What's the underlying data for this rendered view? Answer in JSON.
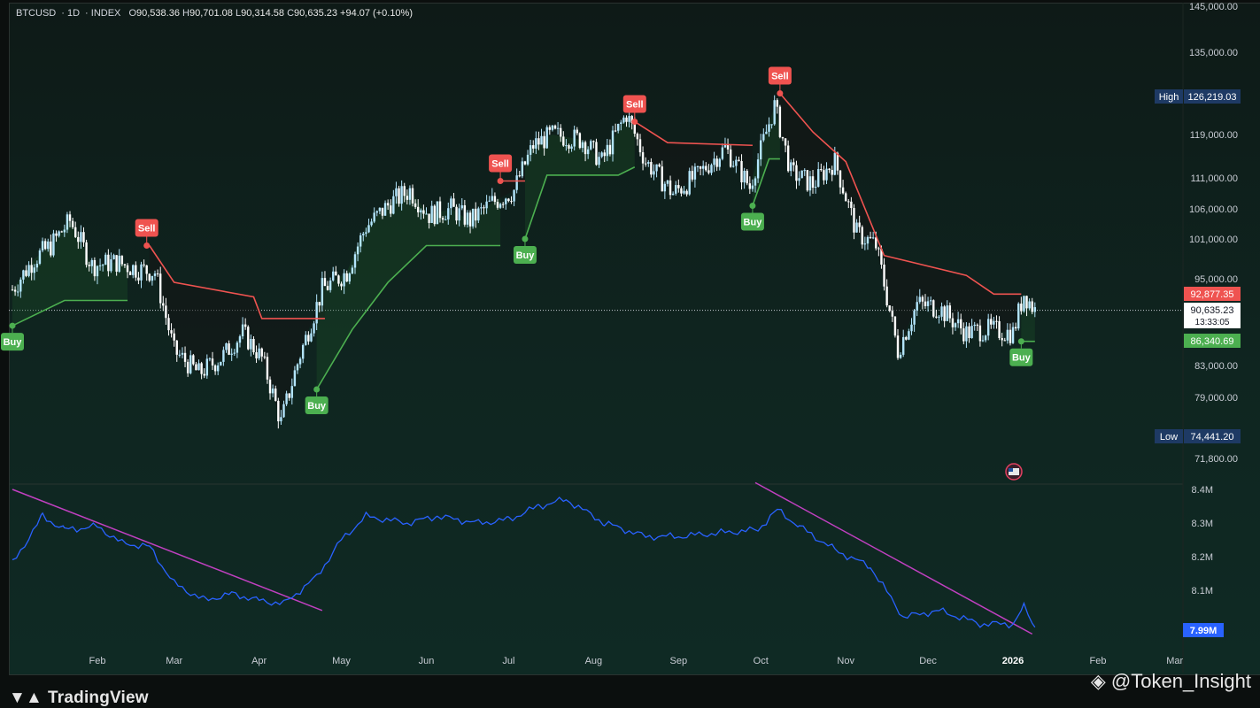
{
  "header": {
    "symbol": "BTCUSD",
    "interval": "1D",
    "exchange": "INDEX",
    "open_label": "O",
    "open": "90,538.36",
    "high_label": "H",
    "high": "90,701.08",
    "low_label": "L",
    "low": "90,314.58",
    "close_label": "C",
    "close": "90,635.23",
    "change": "+94.07 (+0.10%)"
  },
  "tags": {
    "high_label": "High",
    "high_value": "126,219.03",
    "low_label": "Low",
    "low_value": "74,441.20",
    "stop_value": "92,877.35",
    "last_price": "90,635.23",
    "countdown": "13:33:05",
    "support_value": "86,340.69",
    "indicator_value": "7.99M"
  },
  "branding": {
    "logo_text": "TradingView",
    "watermark": "@Token_Insight"
  },
  "colors": {
    "up_candle": "#b3e5fc",
    "down_candle": "#ffffff",
    "sell": "#ef5350",
    "buy": "#4caf50",
    "indicator": "#2962ff",
    "trendline": "#c040c0",
    "high_tag": "#1e3a64",
    "last_price_bg": "#ffffff"
  },
  "chart_data": {
    "type": "candlestick",
    "title": "",
    "x_ticks": [
      "Feb",
      "Mar",
      "Apr",
      "May",
      "Jun",
      "Jul",
      "Aug",
      "Sep",
      "Oct",
      "Nov",
      "Dec",
      "2026",
      "Feb",
      "Mar"
    ],
    "y_ticks": [
      "145,000.00",
      "135,000.00",
      "119,000.00",
      "111,000.00",
      "106,000.00",
      "101,000.00",
      "95,000.00",
      "83,000.00",
      "79,000.00",
      "71,800.00"
    ],
    "price_trace": [
      {
        "date": "2025-01-01",
        "close": 93500
      },
      {
        "date": "2025-01-09",
        "close": 98000
      },
      {
        "date": "2025-01-15",
        "close": 100000
      },
      {
        "date": "2025-01-22",
        "close": 104000
      },
      {
        "date": "2025-01-30",
        "close": 97000
      },
      {
        "date": "2025-02-08",
        "close": 97500
      },
      {
        "date": "2025-02-15",
        "close": 96500
      },
      {
        "date": "2025-02-22",
        "close": 96000
      },
      {
        "date": "2025-03-01",
        "close": 85000
      },
      {
        "date": "2025-03-10",
        "close": 82000
      },
      {
        "date": "2025-03-18",
        "close": 84000
      },
      {
        "date": "2025-03-26",
        "close": 87500
      },
      {
        "date": "2025-04-02",
        "close": 84000
      },
      {
        "date": "2025-04-09",
        "close": 76000
      },
      {
        "date": "2025-04-16",
        "close": 84500
      },
      {
        "date": "2025-04-24",
        "close": 93500
      },
      {
        "date": "2025-05-03",
        "close": 96000
      },
      {
        "date": "2025-05-10",
        "close": 103000
      },
      {
        "date": "2025-05-19",
        "close": 107000
      },
      {
        "date": "2025-05-26",
        "close": 109000
      },
      {
        "date": "2025-06-02",
        "close": 105000
      },
      {
        "date": "2025-06-10",
        "close": 106000
      },
      {
        "date": "2025-06-17",
        "close": 104000
      },
      {
        "date": "2025-06-25",
        "close": 107000
      },
      {
        "date": "2025-07-03",
        "close": 109000
      },
      {
        "date": "2025-07-10",
        "close": 117000
      },
      {
        "date": "2025-07-17",
        "close": 119000
      },
      {
        "date": "2025-07-28",
        "close": 118000
      },
      {
        "date": "2025-08-04",
        "close": 114000
      },
      {
        "date": "2025-08-13",
        "close": 123000
      },
      {
        "date": "2025-08-20",
        "close": 114000
      },
      {
        "date": "2025-08-30",
        "close": 108500
      },
      {
        "date": "2025-09-08",
        "close": 111500
      },
      {
        "date": "2025-09-18",
        "close": 116500
      },
      {
        "date": "2025-09-27",
        "close": 109500
      },
      {
        "date": "2025-10-06",
        "close": 124500
      },
      {
        "date": "2025-10-12",
        "close": 112000
      },
      {
        "date": "2025-10-20",
        "close": 110000
      },
      {
        "date": "2025-10-28",
        "close": 114000
      },
      {
        "date": "2025-11-05",
        "close": 102000
      },
      {
        "date": "2025-11-12",
        "close": 100000
      },
      {
        "date": "2025-11-20",
        "close": 85000
      },
      {
        "date": "2025-11-27",
        "close": 91500
      },
      {
        "date": "2025-12-05",
        "close": 91000
      },
      {
        "date": "2025-12-15",
        "close": 87500
      },
      {
        "date": "2025-12-22",
        "close": 88000
      },
      {
        "date": "2026-01-01",
        "close": 87500
      },
      {
        "date": "2026-01-05",
        "close": 93000
      },
      {
        "date": "2026-01-09",
        "close": 90635.23
      }
    ],
    "stop_line": [
      {
        "date": "2025-01-01",
        "value": 88500,
        "side": "buy"
      },
      {
        "date": "2025-01-20",
        "value": 92000,
        "side": "buy"
      },
      {
        "date": "2025-02-12",
        "value": 92000,
        "side": "buy"
      },
      {
        "date": "2025-02-20",
        "value": 100000,
        "side": "sell"
      },
      {
        "date": "2025-03-01",
        "value": 94500,
        "side": "sell"
      },
      {
        "date": "2025-03-30",
        "value": 92500,
        "side": "sell"
      },
      {
        "date": "2025-04-02",
        "value": 89500,
        "side": "sell"
      },
      {
        "date": "2025-04-25",
        "value": 89500,
        "side": "sell"
      },
      {
        "date": "2025-04-22",
        "value": 80000,
        "side": "buy"
      },
      {
        "date": "2025-05-05",
        "value": 88000,
        "side": "buy"
      },
      {
        "date": "2025-05-18",
        "value": 94500,
        "side": "buy"
      },
      {
        "date": "2025-06-01",
        "value": 100000,
        "side": "buy"
      },
      {
        "date": "2025-06-28",
        "value": 100000,
        "side": "buy"
      },
      {
        "date": "2025-06-28",
        "value": 110500,
        "side": "sell"
      },
      {
        "date": "2025-07-07",
        "value": 110500,
        "side": "sell"
      },
      {
        "date": "2025-07-07",
        "value": 101000,
        "side": "buy"
      },
      {
        "date": "2025-07-15",
        "value": 111500,
        "side": "buy"
      },
      {
        "date": "2025-08-10",
        "value": 111500,
        "side": "buy"
      },
      {
        "date": "2025-08-16",
        "value": 113000,
        "side": "buy"
      },
      {
        "date": "2025-08-16",
        "value": 121500,
        "side": "sell"
      },
      {
        "date": "2025-08-28",
        "value": 117500,
        "side": "sell"
      },
      {
        "date": "2025-09-28",
        "value": 117000,
        "side": "sell"
      },
      {
        "date": "2025-09-28",
        "value": 106500,
        "side": "buy"
      },
      {
        "date": "2025-10-04",
        "value": 114500,
        "side": "buy"
      },
      {
        "date": "2025-10-08",
        "value": 114500,
        "side": "buy"
      },
      {
        "date": "2025-10-08",
        "value": 127000,
        "side": "sell"
      },
      {
        "date": "2025-10-20",
        "value": 119500,
        "side": "sell"
      },
      {
        "date": "2025-11-01",
        "value": 114000,
        "side": "sell"
      },
      {
        "date": "2025-11-15",
        "value": 98500,
        "side": "sell"
      },
      {
        "date": "2025-12-15",
        "value": 95500,
        "side": "sell"
      },
      {
        "date": "2025-12-25",
        "value": 92877.35,
        "side": "sell"
      },
      {
        "date": "2026-01-04",
        "value": 92877.35,
        "side": "sell"
      },
      {
        "date": "2026-01-04",
        "value": 86340.69,
        "side": "buy"
      },
      {
        "date": "2026-01-09",
        "value": 86340.69,
        "side": "buy"
      }
    ],
    "signals": [
      {
        "type": "Buy",
        "date": "2025-01-01",
        "price": 88500
      },
      {
        "type": "Sell",
        "date": "2025-02-19",
        "price": 100000
      },
      {
        "type": "Buy",
        "date": "2025-04-22",
        "price": 80000
      },
      {
        "type": "Sell",
        "date": "2025-06-28",
        "price": 110500
      },
      {
        "type": "Buy",
        "date": "2025-07-07",
        "price": 101000
      },
      {
        "type": "Sell",
        "date": "2025-08-16",
        "price": 121500
      },
      {
        "type": "Buy",
        "date": "2025-09-28",
        "price": 106500
      },
      {
        "type": "Sell",
        "date": "2025-10-08",
        "price": 127000
      },
      {
        "type": "Buy",
        "date": "2026-01-04",
        "price": 86340.69
      }
    ],
    "indicator": {
      "y_ticks": [
        "8.4M",
        "8.3M",
        "8.2M",
        "8.1M"
      ],
      "last_value": "7.99M",
      "series": [
        {
          "date": "2025-01-01",
          "value": 8.18
        },
        {
          "date": "2025-01-12",
          "value": 8.32
        },
        {
          "date": "2025-01-20",
          "value": 8.28
        },
        {
          "date": "2025-02-01",
          "value": 8.29
        },
        {
          "date": "2025-02-10",
          "value": 8.24
        },
        {
          "date": "2025-02-20",
          "value": 8.23
        },
        {
          "date": "2025-03-01",
          "value": 8.12
        },
        {
          "date": "2025-03-12",
          "value": 8.07
        },
        {
          "date": "2025-03-22",
          "value": 8.09
        },
        {
          "date": "2025-04-01",
          "value": 8.07
        },
        {
          "date": "2025-04-10",
          "value": 8.06
        },
        {
          "date": "2025-04-22",
          "value": 8.14
        },
        {
          "date": "2025-05-01",
          "value": 8.25
        },
        {
          "date": "2025-05-10",
          "value": 8.32
        },
        {
          "date": "2025-05-25",
          "value": 8.3
        },
        {
          "date": "2025-06-05",
          "value": 8.32
        },
        {
          "date": "2025-06-20",
          "value": 8.3
        },
        {
          "date": "2025-07-01",
          "value": 8.31
        },
        {
          "date": "2025-07-12",
          "value": 8.35
        },
        {
          "date": "2025-07-22",
          "value": 8.37
        },
        {
          "date": "2025-08-05",
          "value": 8.3
        },
        {
          "date": "2025-08-20",
          "value": 8.26
        },
        {
          "date": "2025-09-01",
          "value": 8.26
        },
        {
          "date": "2025-09-15",
          "value": 8.27
        },
        {
          "date": "2025-09-30",
          "value": 8.28
        },
        {
          "date": "2025-10-07",
          "value": 8.34
        },
        {
          "date": "2025-10-15",
          "value": 8.29
        },
        {
          "date": "2025-10-28",
          "value": 8.22
        },
        {
          "date": "2025-11-10",
          "value": 8.17
        },
        {
          "date": "2025-11-22",
          "value": 8.02
        },
        {
          "date": "2025-12-05",
          "value": 8.04
        },
        {
          "date": "2025-12-20",
          "value": 8.0
        },
        {
          "date": "2026-01-01",
          "value": 8.0
        },
        {
          "date": "2026-01-05",
          "value": 8.05
        },
        {
          "date": "2026-01-09",
          "value": 7.99
        }
      ]
    }
  }
}
